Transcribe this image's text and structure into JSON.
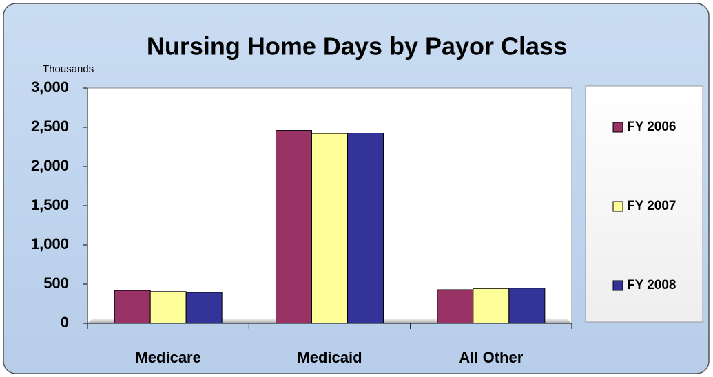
{
  "chart_data": {
    "type": "bar",
    "title": "Nursing Home Days by Payor Class",
    "y_unit": "Thousands",
    "categories": [
      "Medicare",
      "Medicaid",
      "All Other"
    ],
    "series": [
      {
        "name": "FY 2006",
        "color": "#993366",
        "values": [
          420,
          2460,
          430
        ]
      },
      {
        "name": "FY 2007",
        "color": "#ffff99",
        "values": [
          405,
          2420,
          445
        ]
      },
      {
        "name": "FY 2008",
        "color": "#333399",
        "values": [
          395,
          2425,
          450
        ]
      }
    ],
    "ylim": [
      0,
      3000
    ],
    "yticks": [
      0,
      500,
      {
        "value": 1000,
        "label": "1,000"
      },
      {
        "value": 1500,
        "label": "1,500"
      },
      {
        "value": 2000,
        "label": "2,000"
      },
      {
        "value": 2500,
        "label": "2,500"
      },
      {
        "value": 3000,
        "label": "3,000"
      }
    ],
    "grid": false,
    "legend": "right"
  }
}
